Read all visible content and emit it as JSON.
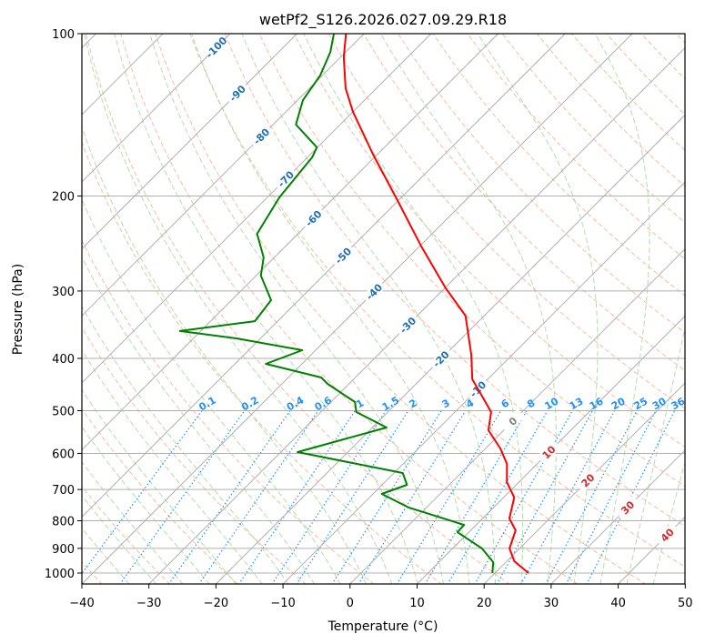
{
  "chart_data": {
    "type": "line",
    "title": "wetPf2_S126.2026.027.09.29.R18",
    "xlabel": "Temperature (°C)",
    "ylabel": "Pressure (hPa)",
    "xlim": [
      -40,
      50
    ],
    "ylim": [
      1050,
      100
    ],
    "yscale": "log",
    "xticks": [
      -40,
      -30,
      -20,
      -10,
      0,
      10,
      20,
      30,
      40,
      50
    ],
    "yticks": [
      100,
      200,
      300,
      400,
      500,
      600,
      700,
      800,
      900,
      1000
    ],
    "grid": true,
    "series": [
      {
        "name": "Temperature",
        "color": "#ff0000",
        "p": [
          100,
          110.6,
          126.3,
          139.6,
          167.6,
          203.5,
          247.2,
          296.7,
          333.3,
          393.8,
          437.3,
          459.9,
          503,
          543.5,
          587.5,
          627.6,
          678.4,
          724.5,
          792.3,
          833.3,
          900.5,
          950.6,
          1000
        ],
        "T": [
          -82.7,
          -79.5,
          -74.6,
          -70.0,
          -60.6,
          -50.2,
          -39.9,
          -29.8,
          -22.8,
          -16.1,
          -12.3,
          -9.5,
          -4.6,
          -2.3,
          2.2,
          5.5,
          8.2,
          11.6,
          14.0,
          16.7,
          18.5,
          21.1,
          25.0
        ]
      },
      {
        "name": "Dewpoint",
        "color": "#008000",
        "p": [
          100,
          108.1,
          119.6,
          132.8,
          147.4,
          162.4,
          169.5,
          201.1,
          235,
          259.9,
          280.9,
          312,
          341.2,
          355.9,
          367.2,
          386.2,
          409.4,
          434,
          445.9,
          482,
          503,
          537.3,
          596.7,
          652.4,
          686.1,
          713.4,
          756.3,
          814.2,
          839.9,
          900.5,
          954.6,
          1000
        ],
        "T": [
          -84.5,
          -82.3,
          -80.3,
          -79.2,
          -76.6,
          -70.1,
          -69.3,
          -68.2,
          -66.1,
          -61.6,
          -59.3,
          -54.1,
          -53.4,
          -63.1,
          -53.6,
          -42.0,
          -45.4,
          -35.1,
          -33.2,
          -26.4,
          -24.7,
          -17.9,
          -27.5,
          -8.7,
          -6.3,
          -8.7,
          -2.6,
          8.2,
          8.3,
          14.4,
          18.1,
          19.6
        ]
      }
    ],
    "mixing_ratio_labels": [
      "0.1",
      "0.2",
      "0.4",
      "0.6",
      "1",
      "1.5",
      "2",
      "3",
      "4",
      "6",
      "8",
      "10",
      "13",
      "16",
      "20",
      "25",
      "30",
      "36"
    ],
    "mixing_ratio_values": [
      0.1,
      0.2,
      0.4,
      0.6,
      1,
      1.5,
      2,
      3,
      4,
      6,
      8,
      10,
      13,
      16,
      20,
      25,
      30,
      36
    ],
    "isotherm_labels": [
      "-100",
      "-90",
      "-80",
      "-70",
      "-60",
      "-50",
      "-40",
      "-30",
      "-20",
      "-10",
      "0",
      "10",
      "20",
      "30",
      "40"
    ],
    "isotherm_label_values": [
      -100,
      -90,
      -80,
      -70,
      -60,
      -50,
      -40,
      -30,
      -20,
      -10,
      0,
      10,
      20,
      30,
      40
    ],
    "colors": {
      "isotherm": "#b0b0b0",
      "dry_adiabat": "#f4a582",
      "moist_adiabat": "#a6d8a0",
      "mixing_ratio": "#1e90ff",
      "neg_isotherm_label": "#1f6fb4",
      "zero_isotherm_label": "#808080",
      "pos_isotherm_label": "#d62728"
    }
  }
}
